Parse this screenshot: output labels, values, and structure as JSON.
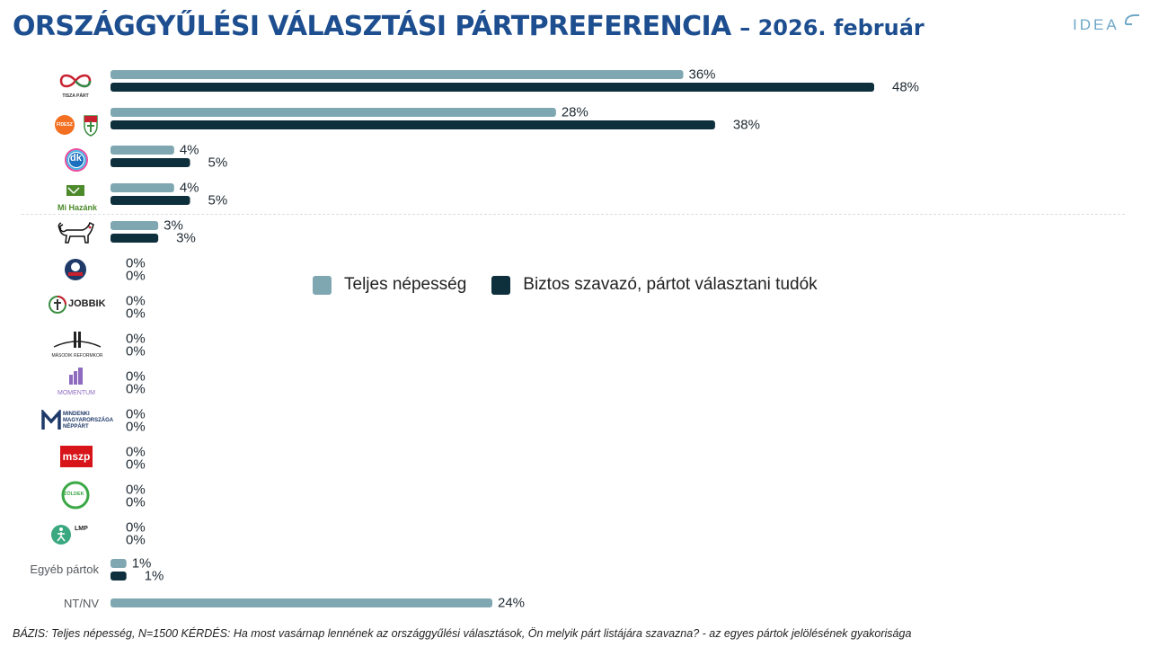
{
  "header": {
    "title_main": "ORSZÁGGYŰLÉSI VÁLASZTÁSI PÁRTPREFERENCIA",
    "title_sub": "– 2026. február",
    "brand": "IDEA"
  },
  "logos": {
    "tisza": "TISZA PÁRT",
    "fidesz": "FIDESZ",
    "dk": "dk",
    "mihazank": "Mi Hazánk",
    "jobbik": "JOBBIK",
    "masodik": "MÁSODIK REFORMKOR",
    "momentum": "MOMENTUM",
    "mmn": [
      "MINDENKI",
      "MAGYARORSZÁGA",
      "NÉPPÁRT"
    ],
    "mszp": "mszp",
    "zoldek": "ZÖLDEK",
    "lmp": "LMP"
  },
  "colors": {
    "teljes": "#7fa7b1",
    "biztos": "#0e2f3c",
    "title": "#1d4e8f"
  },
  "chart_data": {
    "type": "bar",
    "orientation": "horizontal",
    "categories": [
      "TISZA PÁRT",
      "FIDESZ-KDNP",
      "DK",
      "Mi Hazánk",
      "MKKP",
      "Nép Pártján",
      "JOBBIK",
      "Második Reformkor",
      "MOMENTUM",
      "Mindenki Magyarországa Néppárt",
      "MSZP",
      "Zöldek",
      "LMP",
      "Egyéb pártok",
      "NT/NV"
    ],
    "category_text": [
      "",
      "",
      "",
      "",
      "",
      "",
      "",
      "",
      "",
      "",
      "",
      "",
      "",
      "Egyéb pártok",
      "NT/NV"
    ],
    "series": [
      {
        "name": "Teljes népesség",
        "values": [
          36,
          28,
          4,
          4,
          3,
          0,
          0,
          0,
          0,
          0,
          0,
          0,
          0,
          1,
          24
        ]
      },
      {
        "name": "Biztos szavazó, pártot választani tudók",
        "values": [
          48,
          38,
          5,
          5,
          3,
          0,
          0,
          0,
          0,
          0,
          0,
          0,
          0,
          1,
          null
        ]
      }
    ],
    "value_suffix": "%",
    "xlim": [
      0,
      50
    ],
    "legend": "center",
    "grid": false
  },
  "footnote": "BÁZIS: Teljes népesség, N=1500  KÉRDÉS:  Ha most vasárnap lennének az országgyűlési választások, Ön melyik párt listájára szavazna? - az egyes pártok jelölésének gyakorisága"
}
